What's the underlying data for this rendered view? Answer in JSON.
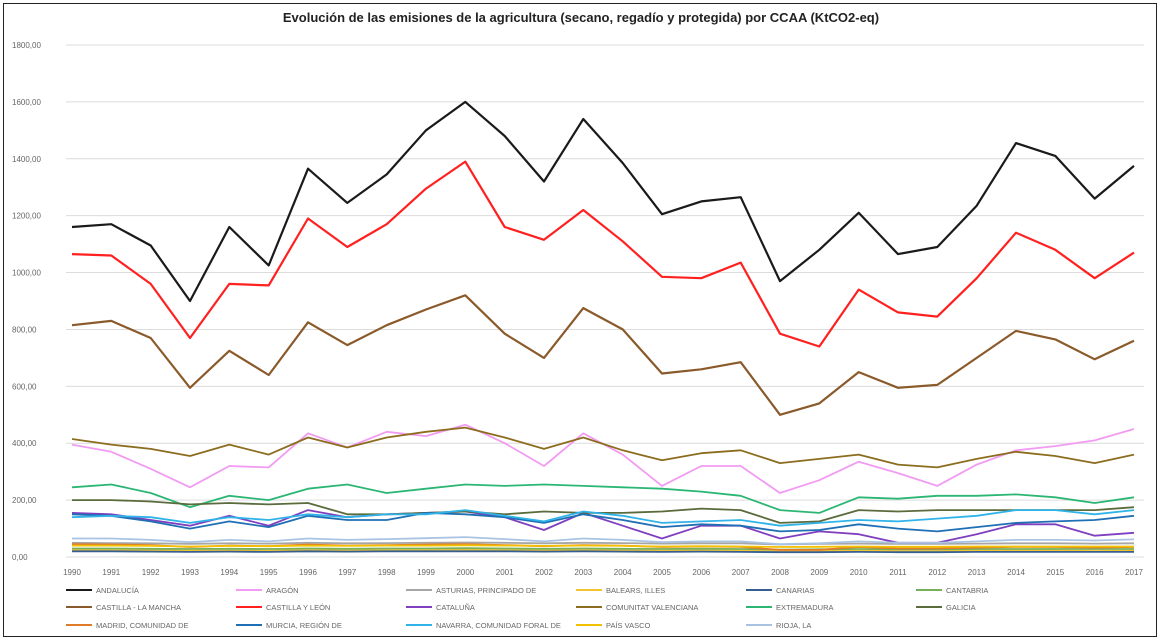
{
  "chart_data": {
    "type": "line",
    "title": "Evolución de las emisiones de la agricultura (secano, regadío y protegida) por CCAA (KtCO2-eq)",
    "xlabel": "",
    "ylabel": "",
    "ylim": [
      0,
      1800
    ],
    "y_ticks": [
      "0,00",
      "200,00",
      "400,00",
      "600,00",
      "800,00",
      "1000,00",
      "1200,00",
      "1400,00",
      "1600,00",
      "1800,00"
    ],
    "x": [
      "1990",
      "1991",
      "1992",
      "1993",
      "1994",
      "1995",
      "1996",
      "1997",
      "1998",
      "1999",
      "2000",
      "2001",
      "2002",
      "2003",
      "2004",
      "2005",
      "2006",
      "2007",
      "2008",
      "2009",
      "2010",
      "2011",
      "2012",
      "2013",
      "2014",
      "2015",
      "2016",
      "2017"
    ],
    "grid": true,
    "legend_position": "bottom",
    "series": [
      {
        "name": "ANDALUCÍA",
        "color": "#1a1a1a",
        "values": [
          1160,
          1170,
          1095,
          900,
          1160,
          1025,
          1365,
          1245,
          1345,
          1500,
          1600,
          1480,
          1320,
          1540,
          1385,
          1205,
          1250,
          1265,
          970,
          1080,
          1210,
          1065,
          1090,
          1235,
          1455,
          1410,
          1260,
          1375
        ]
      },
      {
        "name": "ARAGÓN",
        "color": "#f29bf2",
        "values": [
          395,
          370,
          310,
          245,
          320,
          315,
          435,
          385,
          440,
          425,
          465,
          400,
          320,
          435,
          360,
          250,
          320,
          320,
          225,
          270,
          335,
          295,
          250,
          325,
          375,
          390,
          410,
          450
        ]
      },
      {
        "name": "ASTURIAS, PRINCIPADO DE",
        "color": "#a6a6a6",
        "values": [
          50,
          49,
          48,
          46,
          48,
          47,
          50,
          48,
          49,
          50,
          51,
          50,
          48,
          50,
          49,
          47,
          48,
          48,
          44,
          46,
          47,
          46,
          46,
          47,
          48,
          48,
          47,
          48
        ]
      },
      {
        "name": "BALEARS, ILLES",
        "color": "#f4c430",
        "values": [
          25,
          24,
          24,
          22,
          23,
          22,
          24,
          23,
          24,
          24,
          25,
          24,
          23,
          24,
          23,
          22,
          23,
          22,
          20,
          21,
          22,
          21,
          21,
          22,
          22,
          22,
          21,
          22
        ]
      },
      {
        "name": "CANARIAS",
        "color": "#365f91",
        "values": [
          20,
          20,
          19,
          18,
          19,
          18,
          20,
          19,
          20,
          20,
          20,
          20,
          19,
          20,
          19,
          18,
          19,
          18,
          17,
          17,
          18,
          17,
          17,
          18,
          18,
          18,
          18,
          18
        ]
      },
      {
        "name": "CANTABRIA",
        "color": "#77b05a",
        "values": [
          30,
          30,
          29,
          28,
          29,
          28,
          30,
          29,
          30,
          30,
          31,
          30,
          29,
          30,
          29,
          28,
          29,
          28,
          26,
          27,
          28,
          27,
          27,
          28,
          28,
          28,
          28,
          28
        ]
      },
      {
        "name": "CASTILLA - LA MANCHA",
        "color": "#8b5a2b",
        "values": [
          815,
          830,
          770,
          595,
          725,
          640,
          825,
          745,
          815,
          870,
          920,
          785,
          700,
          875,
          800,
          645,
          660,
          685,
          500,
          540,
          650,
          595,
          605,
          700,
          795,
          765,
          695,
          760
        ]
      },
      {
        "name": "CASTILLA Y LEÓN",
        "color": "#ff2020",
        "values": [
          1065,
          1060,
          960,
          770,
          960,
          955,
          1190,
          1090,
          1170,
          1295,
          1390,
          1160,
          1115,
          1220,
          1110,
          985,
          980,
          1035,
          785,
          740,
          940,
          860,
          845,
          980,
          1140,
          1080,
          980,
          1070
        ]
      },
      {
        "name": "CATALUÑA",
        "color": "#7f3fbf",
        "values": [
          155,
          150,
          130,
          110,
          145,
          110,
          165,
          140,
          150,
          155,
          160,
          140,
          95,
          155,
          110,
          65,
          110,
          110,
          65,
          90,
          80,
          50,
          50,
          80,
          115,
          115,
          75,
          85
        ]
      },
      {
        "name": "COMUNITAT VALENCIANA",
        "color": "#8c6d1f",
        "values": [
          415,
          395,
          380,
          355,
          395,
          360,
          420,
          385,
          420,
          440,
          455,
          420,
          380,
          420,
          375,
          340,
          365,
          375,
          330,
          345,
          360,
          325,
          315,
          345,
          370,
          355,
          330,
          360
        ]
      },
      {
        "name": "EXTREMADURA",
        "color": "#2bb673",
        "values": [
          245,
          255,
          225,
          175,
          215,
          200,
          240,
          255,
          225,
          240,
          255,
          250,
          255,
          250,
          245,
          240,
          230,
          215,
          165,
          155,
          210,
          205,
          215,
          215,
          220,
          210,
          190,
          210
        ]
      },
      {
        "name": "GALICIA",
        "color": "#5a6b3c",
        "values": [
          200,
          200,
          195,
          185,
          190,
          185,
          190,
          150,
          150,
          155,
          160,
          150,
          160,
          155,
          155,
          160,
          170,
          165,
          120,
          125,
          165,
          160,
          165,
          165,
          165,
          165,
          165,
          175
        ]
      },
      {
        "name": "MADRID, COMUNIDAD DE",
        "color": "#e07b2a",
        "values": [
          45,
          44,
          42,
          35,
          40,
          38,
          44,
          40,
          42,
          44,
          45,
          42,
          38,
          42,
          40,
          35,
          37,
          36,
          25,
          25,
          35,
          30,
          30,
          33,
          36,
          35,
          33,
          35
        ]
      },
      {
        "name": "MURCIA, REGIÓN DE",
        "color": "#1f6fb5",
        "values": [
          150,
          145,
          125,
          100,
          125,
          105,
          145,
          130,
          130,
          155,
          150,
          140,
          120,
          150,
          130,
          105,
          115,
          110,
          90,
          95,
          115,
          100,
          90,
          105,
          120,
          125,
          130,
          145
        ]
      },
      {
        "name": "NAVARRA, COMUNIDAD FORAL DE",
        "color": "#2fb3e8",
        "values": [
          140,
          145,
          140,
          120,
          140,
          130,
          150,
          140,
          150,
          150,
          165,
          145,
          125,
          160,
          145,
          120,
          125,
          130,
          110,
          120,
          130,
          125,
          135,
          145,
          165,
          165,
          150,
          165
        ]
      },
      {
        "name": "PAÍS VASCO",
        "color": "#f2c200",
        "values": [
          40,
          40,
          39,
          37,
          39,
          38,
          40,
          39,
          40,
          40,
          41,
          40,
          39,
          40,
          39,
          37,
          38,
          37,
          35,
          36,
          37,
          36,
          36,
          37,
          37,
          37,
          37,
          37
        ]
      },
      {
        "name": "RIOJA, LA",
        "color": "#a9c4e3",
        "values": [
          65,
          65,
          60,
          52,
          60,
          55,
          65,
          60,
          63,
          66,
          70,
          63,
          55,
          65,
          60,
          52,
          55,
          55,
          45,
          48,
          55,
          50,
          50,
          55,
          60,
          60,
          58,
          62
        ]
      }
    ]
  }
}
